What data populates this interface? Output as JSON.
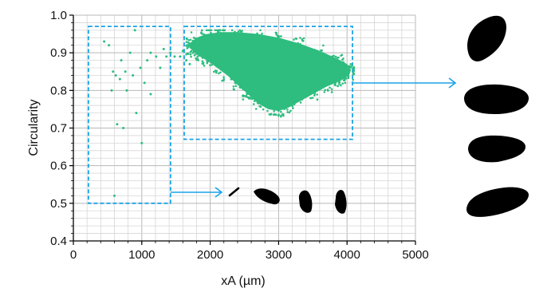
{
  "chart_data": {
    "type": "scatter",
    "xlabel": "xA (µm)",
    "ylabel": "Circularity",
    "xlim": [
      0,
      5000
    ],
    "ylim": [
      0.4,
      1.0
    ],
    "x_ticks": [
      0,
      1000,
      2000,
      3000,
      4000,
      5000
    ],
    "x_tick_labels": [
      "0",
      "1000",
      "2000",
      "3000",
      "4000",
      "5000"
    ],
    "y_ticks": [
      0.4,
      0.5,
      0.6,
      0.7,
      0.8,
      0.9,
      1.0
    ],
    "y_tick_labels": [
      "0.4",
      "0.5",
      "0.6",
      "0.7",
      "0.8",
      "0.9",
      "1.0"
    ],
    "grid": true,
    "point_color": "#2ebd7f",
    "box_color": "#1aa3e6",
    "arrow_color": "#1aa3e6",
    "series": [
      {
        "points": [
          [
            450,
            0.93
          ],
          [
            520,
            0.92
          ],
          [
            580,
            0.85
          ],
          [
            620,
            0.84
          ],
          [
            600,
            0.52
          ],
          [
            680,
            0.83
          ],
          [
            730,
            0.7
          ],
          [
            760,
            0.85
          ],
          [
            700,
            0.88
          ],
          [
            780,
            0.8
          ],
          [
            830,
            0.9
          ],
          [
            870,
            0.84
          ],
          [
            900,
            0.96
          ],
          [
            920,
            0.74
          ],
          [
            980,
            0.86
          ],
          [
            1040,
            0.82
          ],
          [
            1080,
            0.88
          ],
          [
            1130,
            0.9
          ],
          [
            1210,
            0.89
          ],
          [
            1270,
            0.86
          ],
          [
            1320,
            0.91
          ],
          [
            1360,
            0.89
          ],
          [
            1420,
            0.9
          ],
          [
            1480,
            0.89
          ],
          [
            1560,
            0.89
          ],
          [
            1600,
            0.905
          ],
          [
            1650,
            0.88
          ],
          [
            1700,
            0.87
          ],
          [
            640,
            0.71
          ],
          [
            560,
            0.8
          ],
          [
            1130,
            0.79
          ],
          [
            1000,
            0.66
          ]
        ],
        "cluster": {
          "x_range": [
            1650,
            4100
          ],
          "y_range": [
            0.72,
            0.96
          ]
        }
      }
    ],
    "boxes": [
      {
        "x": [
          220,
          1420
        ],
        "y": [
          0.5,
          0.97
        ]
      },
      {
        "x": [
          1620,
          4080
        ],
        "y": [
          0.67,
          0.97
        ]
      }
    ],
    "shape_groups": [
      {
        "shapes": [
          "needle",
          "teardrop",
          "seed-pair",
          "kidney"
        ]
      },
      {
        "shapes": [
          "seed-top",
          "seed-middle",
          "seed-lower",
          "seed-bottom"
        ]
      }
    ]
  }
}
